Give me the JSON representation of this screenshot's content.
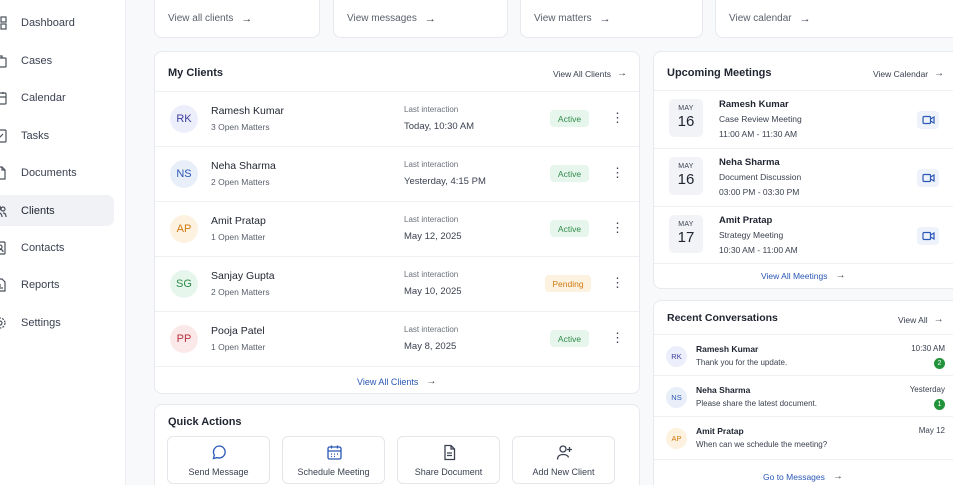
{
  "sidebar": {
    "items": [
      {
        "label": "Dashboard",
        "icon": "dashboard-icon"
      },
      {
        "label": "Cases",
        "icon": "briefcase-icon"
      },
      {
        "label": "Calendar",
        "icon": "calendar-icon"
      },
      {
        "label": "Tasks",
        "icon": "checkbox-icon"
      },
      {
        "label": "Documents",
        "icon": "document-icon"
      },
      {
        "label": "Clients",
        "icon": "users-icon",
        "active": true
      },
      {
        "label": "Contacts",
        "icon": "contact-card-icon"
      },
      {
        "label": "Reports",
        "icon": "report-icon"
      },
      {
        "label": "Settings",
        "icon": "gear-icon"
      }
    ]
  },
  "top_links": [
    "View all clients",
    "View messages",
    "View matters",
    "View calendar"
  ],
  "my_clients": {
    "title": "My Clients",
    "view_all": "View All Clients",
    "footer_link": "View All Clients",
    "clients": [
      {
        "initials": "RK",
        "name": "Ramesh Kumar",
        "matters": "3 Open Matters",
        "last_label": "Last interaction",
        "last_value": "Today, 10:30 AM",
        "status": "Active"
      },
      {
        "initials": "NS",
        "name": "Neha Sharma",
        "matters": "2 Open Matters",
        "last_label": "Last interaction",
        "last_value": "Yesterday, 4:15 PM",
        "status": "Active"
      },
      {
        "initials": "AP",
        "name": "Amit Pratap",
        "matters": "1 Open Matter",
        "last_label": "Last interaction",
        "last_value": "May 12, 2025",
        "status": "Active"
      },
      {
        "initials": "SG",
        "name": "Sanjay Gupta",
        "matters": "2 Open Matters",
        "last_label": "Last interaction",
        "last_value": "May 10, 2025",
        "status": "Pending"
      },
      {
        "initials": "PP",
        "name": "Pooja Patel",
        "matters": "1 Open Matter",
        "last_label": "Last interaction",
        "last_value": "May 8, 2025",
        "status": "Active"
      }
    ]
  },
  "quick_actions": {
    "title": "Quick Actions",
    "items": [
      {
        "label": "Send Message",
        "icon": "chat-bubble-icon"
      },
      {
        "label": "Schedule Meeting",
        "icon": "calendar-icon"
      },
      {
        "label": "Share Document",
        "icon": "document-icon"
      },
      {
        "label": "Add New Client",
        "icon": "add-user-icon"
      }
    ]
  },
  "meetings": {
    "title": "Upcoming Meetings",
    "view_link": "View Calendar",
    "footer_link": "View All Meetings",
    "items": [
      {
        "month": "MAY",
        "day": "16",
        "name": "Ramesh Kumar",
        "title": "Case Review Meeting",
        "time": "11:00 AM - 11:30 AM"
      },
      {
        "month": "MAY",
        "day": "16",
        "name": "Neha Sharma",
        "title": "Document Discussion",
        "time": "03:00 PM - 03:30 PM"
      },
      {
        "month": "MAY",
        "day": "17",
        "name": "Amit Pratap",
        "title": "Strategy Meeting",
        "time": "10:30 AM - 11:00 AM"
      }
    ]
  },
  "conversations": {
    "title": "Recent Conversations",
    "view_link": "View All",
    "footer_link": "Go to Messages",
    "items": [
      {
        "initials": "RK",
        "name": "Ramesh Kumar",
        "message": "Thank you for the update.",
        "time": "10:30 AM",
        "unread": "2"
      },
      {
        "initials": "NS",
        "name": "Neha Sharma",
        "message": "Please share the latest document.",
        "time": "Yesterday",
        "unread": "1"
      },
      {
        "initials": "AP",
        "name": "Amit Pratap",
        "message": "When can we schedule the meeting?",
        "time": "May 12",
        "unread": ""
      }
    ]
  },
  "arrow": "→",
  "kebab": "⋮",
  "colors": {
    "link_blue": "#2a57b5",
    "active_bg": "#e7f6ec",
    "active_text": "#2e8b4a",
    "pending_bg": "#fdf1df",
    "pending_text": "#cf7a12"
  }
}
